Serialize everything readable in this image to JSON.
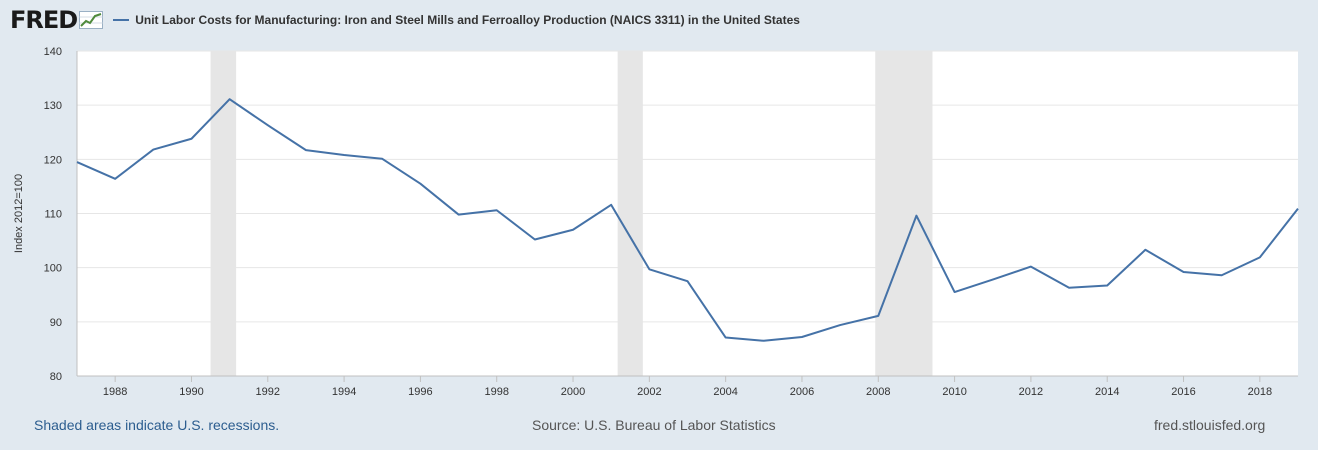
{
  "logo": {
    "text": "FRED"
  },
  "legend": {
    "label": "Unit Labor Costs for Manufacturing: Iron and Steel Mills and Ferroalloy Production (NAICS 3311) in the United States"
  },
  "footer": {
    "recession_note": "Shaded areas indicate U.S. recessions.",
    "source": "Source: U.S. Bureau of Labor Statistics",
    "site": "fred.stlouisfed.org"
  },
  "colors": {
    "line": "#4572a7",
    "recession": "#e6e6e6",
    "background": "#e1e9f0",
    "plot": "#ffffff"
  },
  "chart_data": {
    "type": "line",
    "title": "Unit Labor Costs for Manufacturing: Iron and Steel Mills and Ferroalloy Production (NAICS 3311) in the United States",
    "ylabel": "Index 2012=100",
    "xlabel": "",
    "x": [
      1987,
      1988,
      1989,
      1990,
      1991,
      1992,
      1993,
      1994,
      1995,
      1996,
      1997,
      1998,
      1999,
      2000,
      2001,
      2002,
      2003,
      2004,
      2005,
      2006,
      2007,
      2008,
      2009,
      2010,
      2011,
      2012,
      2013,
      2014,
      2015,
      2016,
      2017,
      2018,
      2019
    ],
    "series": [
      {
        "name": "Unit Labor Costs for Manufacturing: Iron and Steel Mills and Ferroalloy Production (NAICS 3311) in the United States",
        "values": [
          119.5,
          116.4,
          121.8,
          123.8,
          131.1,
          126.3,
          121.7,
          120.8,
          120.1,
          115.5,
          109.8,
          110.6,
          105.2,
          107.0,
          111.6,
          99.7,
          97.5,
          87.1,
          86.5,
          87.2,
          89.4,
          91.1,
          109.6,
          95.5,
          97.8,
          100.2,
          96.3,
          96.7,
          103.3,
          99.2,
          98.6,
          101.9,
          110.9
        ]
      }
    ],
    "recessions": [
      [
        1990.5,
        1991.17
      ],
      [
        2001.17,
        2001.83
      ],
      [
        2007.92,
        2009.42
      ]
    ],
    "xlim": [
      1987,
      2019
    ],
    "ylim": [
      80,
      140
    ],
    "yticks": [
      80,
      90,
      100,
      110,
      120,
      130,
      140
    ],
    "xticks": [
      1988,
      1990,
      1992,
      1994,
      1996,
      1998,
      2000,
      2002,
      2004,
      2006,
      2008,
      2010,
      2012,
      2014,
      2016,
      2018
    ],
    "grid": true
  }
}
